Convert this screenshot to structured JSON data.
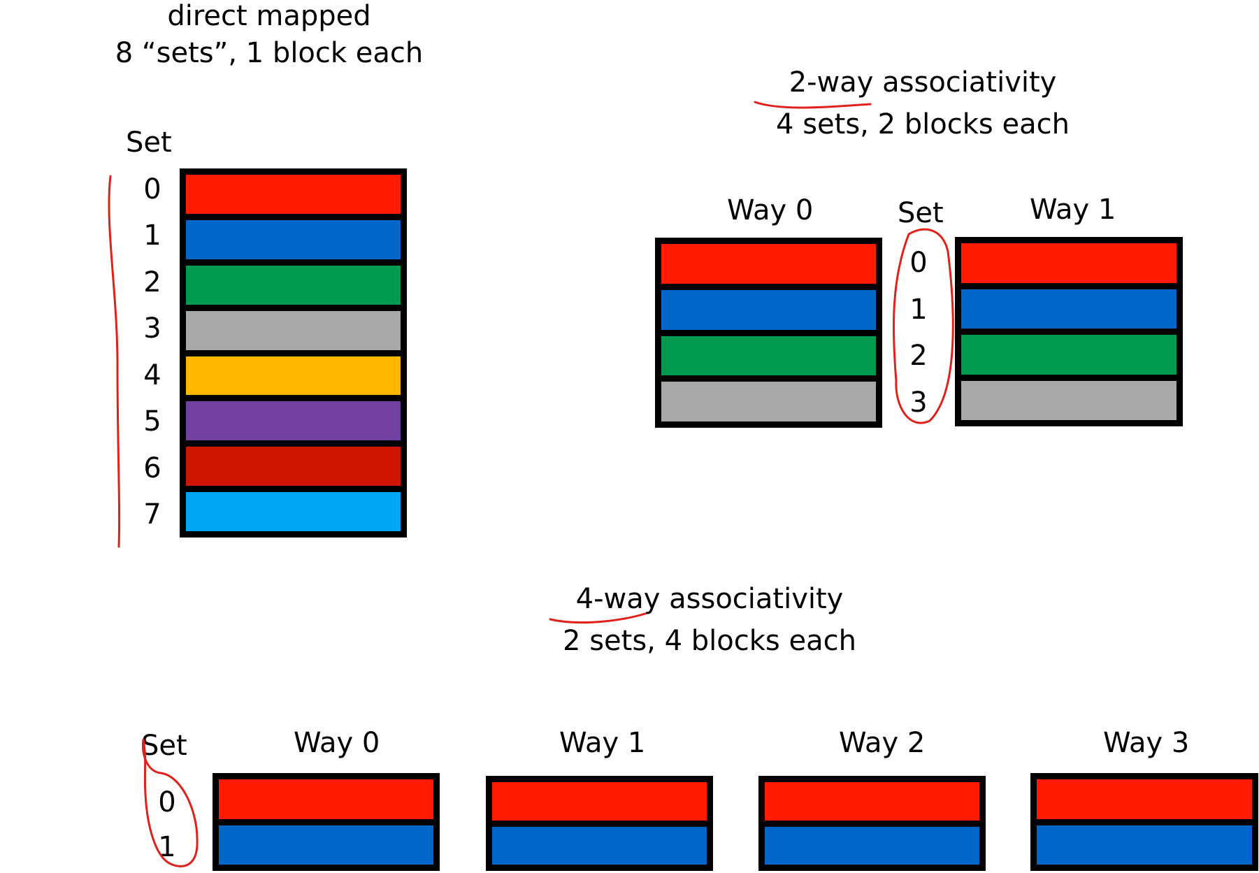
{
  "colors": {
    "red": "#ff1a00",
    "blue": "#0066c8",
    "green": "#009a4e",
    "gray": "#a8a8a8",
    "amber": "#ffb800",
    "purple": "#7140a0",
    "dark_red": "#cf1400",
    "sky_blue": "#00a6f2",
    "border": "#000000",
    "annotation_ink": "#e0201a"
  },
  "direct_mapped": {
    "title": "direct mapped",
    "subtitle": "8 “sets”, 1 block each",
    "set_header": "Set",
    "sets": [
      {
        "label": "0",
        "color": "#ff1a00"
      },
      {
        "label": "1",
        "color": "#0066c8"
      },
      {
        "label": "2",
        "color": "#009a4e"
      },
      {
        "label": "3",
        "color": "#a8a8a8"
      },
      {
        "label": "4",
        "color": "#ffb800"
      },
      {
        "label": "5",
        "color": "#7140a0"
      },
      {
        "label": "6",
        "color": "#cf1400"
      },
      {
        "label": "7",
        "color": "#00a6f2"
      }
    ]
  },
  "two_way": {
    "title_emph": "2-way",
    "title_rest": " associativity",
    "subtitle": "4 sets, 2 blocks each",
    "set_header": "Set",
    "ways": [
      "Way 0",
      "Way 1"
    ],
    "set_labels": [
      "0",
      "1",
      "2",
      "3"
    ],
    "block_colors": [
      "#ff1a00",
      "#0066c8",
      "#009a4e",
      "#a8a8a8"
    ]
  },
  "four_way": {
    "title_emph": "4-way",
    "title_rest": " associativity",
    "subtitle": "2 sets, 4 blocks each",
    "set_header": "Set",
    "ways": [
      "Way 0",
      "Way 1",
      "Way 2",
      "Way 3"
    ],
    "set_labels": [
      "0",
      "1"
    ],
    "block_colors": [
      "#ff1a00",
      "#0066c8"
    ]
  }
}
